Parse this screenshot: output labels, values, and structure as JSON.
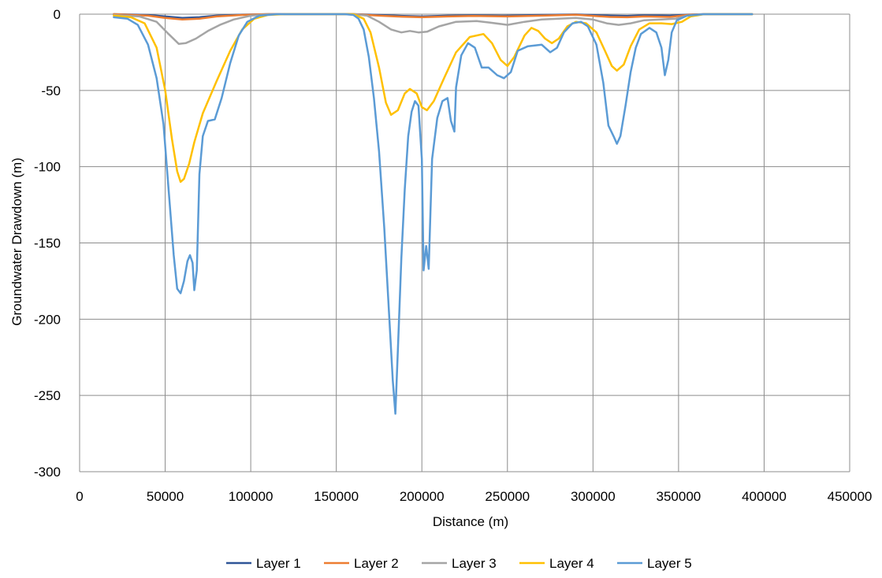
{
  "chart_data": {
    "type": "line",
    "title": "",
    "xlabel": "Distance (m)",
    "ylabel": "Groundwater Drawdown (m)",
    "xlim": [
      0,
      450000
    ],
    "ylim": [
      -300,
      0
    ],
    "x_ticks": [
      0,
      50000,
      100000,
      150000,
      200000,
      250000,
      300000,
      350000,
      400000,
      450000
    ],
    "y_ticks": [
      0,
      -50,
      -100,
      -150,
      -200,
      -250,
      -300
    ],
    "x_tick_labels": [
      "0",
      "50000",
      "100000",
      "150000",
      "200000",
      "250000",
      "300000",
      "350000",
      "400000",
      "450000"
    ],
    "y_tick_labels": [
      "0",
      "-50",
      "-100",
      "-150",
      "-200",
      "-250",
      "-300"
    ],
    "grid": true,
    "legend_position": "bottom",
    "series": [
      {
        "name": "Layer 1",
        "color": "#2f5597",
        "points": [
          [
            20000,
            0
          ],
          [
            40000,
            -0.5
          ],
          [
            50000,
            -1.5
          ],
          [
            60000,
            -2.5
          ],
          [
            70000,
            -2
          ],
          [
            80000,
            -1
          ],
          [
            95000,
            -0.3
          ],
          [
            110000,
            0
          ],
          [
            160000,
            0
          ],
          [
            175000,
            -0.5
          ],
          [
            185000,
            -1
          ],
          [
            200000,
            -1.5
          ],
          [
            215000,
            -1
          ],
          [
            230000,
            -0.8
          ],
          [
            250000,
            -1
          ],
          [
            270000,
            -0.5
          ],
          [
            290000,
            -0.2
          ],
          [
            310000,
            -1
          ],
          [
            320000,
            -1.2
          ],
          [
            330000,
            -0.8
          ],
          [
            345000,
            -1
          ],
          [
            355000,
            -0.3
          ],
          [
            365000,
            0
          ],
          [
            393000,
            0
          ]
        ]
      },
      {
        "name": "Layer 2",
        "color": "#ed7d31",
        "points": [
          [
            20000,
            0
          ],
          [
            40000,
            -1
          ],
          [
            50000,
            -2.5
          ],
          [
            60000,
            -3.5
          ],
          [
            70000,
            -3
          ],
          [
            80000,
            -1.5
          ],
          [
            95000,
            -0.5
          ],
          [
            110000,
            0
          ],
          [
            160000,
            0
          ],
          [
            175000,
            -1
          ],
          [
            185000,
            -1.5
          ],
          [
            200000,
            -2
          ],
          [
            215000,
            -1.5
          ],
          [
            230000,
            -1.2
          ],
          [
            250000,
            -1.5
          ],
          [
            270000,
            -1
          ],
          [
            290000,
            -0.4
          ],
          [
            310000,
            -1.8
          ],
          [
            320000,
            -2
          ],
          [
            330000,
            -1.5
          ],
          [
            345000,
            -1.8
          ],
          [
            355000,
            -0.5
          ],
          [
            365000,
            0
          ],
          [
            393000,
            0
          ]
        ]
      },
      {
        "name": "Layer 3",
        "color": "#a5a5a5",
        "points": [
          [
            20000,
            -0.5
          ],
          [
            35000,
            -1.5
          ],
          [
            45000,
            -5
          ],
          [
            52000,
            -13
          ],
          [
            58000,
            -19.5
          ],
          [
            62000,
            -19
          ],
          [
            68000,
            -16
          ],
          [
            75000,
            -11
          ],
          [
            82000,
            -7
          ],
          [
            90000,
            -3.5
          ],
          [
            100000,
            -1
          ],
          [
            110000,
            -0.2
          ],
          [
            120000,
            0
          ],
          [
            160000,
            0
          ],
          [
            168000,
            -1
          ],
          [
            175000,
            -5
          ],
          [
            182000,
            -10
          ],
          [
            188000,
            -12
          ],
          [
            193000,
            -11
          ],
          [
            198000,
            -12
          ],
          [
            203000,
            -11.5
          ],
          [
            210000,
            -8
          ],
          [
            220000,
            -5
          ],
          [
            232000,
            -4.5
          ],
          [
            240000,
            -5.5
          ],
          [
            250000,
            -7
          ],
          [
            260000,
            -5
          ],
          [
            270000,
            -3.5
          ],
          [
            280000,
            -3
          ],
          [
            290000,
            -2.5
          ],
          [
            300000,
            -3.5
          ],
          [
            308000,
            -6
          ],
          [
            315000,
            -7
          ],
          [
            322000,
            -6
          ],
          [
            330000,
            -4
          ],
          [
            340000,
            -3.5
          ],
          [
            348000,
            -3
          ],
          [
            355000,
            -1
          ],
          [
            365000,
            0
          ],
          [
            393000,
            0
          ]
        ]
      },
      {
        "name": "Layer 4",
        "color": "#ffc000",
        "points": [
          [
            20000,
            -1
          ],
          [
            30000,
            -2
          ],
          [
            38000,
            -6
          ],
          [
            45000,
            -22
          ],
          [
            50000,
            -50
          ],
          [
            54000,
            -82
          ],
          [
            57000,
            -103
          ],
          [
            59000,
            -110
          ],
          [
            61000,
            -108
          ],
          [
            64000,
            -98
          ],
          [
            67000,
            -84
          ],
          [
            72000,
            -65
          ],
          [
            80000,
            -44
          ],
          [
            88000,
            -24
          ],
          [
            95000,
            -10
          ],
          [
            102000,
            -3
          ],
          [
            110000,
            -0.5
          ],
          [
            120000,
            0
          ],
          [
            160000,
            0
          ],
          [
            166000,
            -3
          ],
          [
            170000,
            -12
          ],
          [
            175000,
            -35
          ],
          [
            179000,
            -58
          ],
          [
            182000,
            -66
          ],
          [
            186000,
            -63
          ],
          [
            190000,
            -52
          ],
          [
            193000,
            -49
          ],
          [
            197000,
            -52
          ],
          [
            200000,
            -61
          ],
          [
            203000,
            -63
          ],
          [
            207000,
            -57
          ],
          [
            213000,
            -42
          ],
          [
            220000,
            -25
          ],
          [
            228000,
            -15
          ],
          [
            236000,
            -13
          ],
          [
            241000,
            -19
          ],
          [
            246000,
            -30
          ],
          [
            250000,
            -34
          ],
          [
            254000,
            -28
          ],
          [
            260000,
            -14
          ],
          [
            264000,
            -9
          ],
          [
            268000,
            -11
          ],
          [
            272000,
            -16
          ],
          [
            276000,
            -19
          ],
          [
            280000,
            -16
          ],
          [
            285000,
            -8
          ],
          [
            290000,
            -5
          ],
          [
            296000,
            -6
          ],
          [
            302000,
            -12
          ],
          [
            307000,
            -24
          ],
          [
            311000,
            -34
          ],
          [
            314000,
            -37
          ],
          [
            318000,
            -33
          ],
          [
            322000,
            -21
          ],
          [
            327000,
            -10
          ],
          [
            333000,
            -6
          ],
          [
            340000,
            -6
          ],
          [
            346000,
            -6.5
          ],
          [
            352000,
            -5
          ],
          [
            357000,
            -1.5
          ],
          [
            365000,
            0
          ],
          [
            393000,
            0
          ]
        ]
      },
      {
        "name": "Layer 5",
        "color": "#5b9bd5",
        "points": [
          [
            20000,
            -2
          ],
          [
            28000,
            -3
          ],
          [
            34000,
            -7
          ],
          [
            40000,
            -20
          ],
          [
            45000,
            -42
          ],
          [
            49000,
            -72
          ],
          [
            52000,
            -115
          ],
          [
            55000,
            -158
          ],
          [
            57000,
            -180
          ],
          [
            59000,
            -183
          ],
          [
            61000,
            -175
          ],
          [
            63000,
            -162
          ],
          [
            64500,
            -158
          ],
          [
            66000,
            -163
          ],
          [
            67000,
            -181
          ],
          [
            68500,
            -168
          ],
          [
            70000,
            -105
          ],
          [
            72000,
            -80
          ],
          [
            75000,
            -70
          ],
          [
            79000,
            -69
          ],
          [
            83000,
            -55
          ],
          [
            88000,
            -32
          ],
          [
            93000,
            -14
          ],
          [
            98000,
            -5
          ],
          [
            105000,
            -1
          ],
          [
            115000,
            0
          ],
          [
            155000,
            0
          ],
          [
            160000,
            -0.5
          ],
          [
            163000,
            -3
          ],
          [
            166000,
            -10
          ],
          [
            169000,
            -28
          ],
          [
            172000,
            -55
          ],
          [
            175000,
            -90
          ],
          [
            178000,
            -140
          ],
          [
            181000,
            -200
          ],
          [
            183000,
            -240
          ],
          [
            184500,
            -262
          ],
          [
            186000,
            -220
          ],
          [
            188000,
            -160
          ],
          [
            190000,
            -115
          ],
          [
            192000,
            -80
          ],
          [
            194000,
            -64
          ],
          [
            196000,
            -57
          ],
          [
            198000,
            -60
          ],
          [
            200000,
            -95
          ],
          [
            201000,
            -168
          ],
          [
            202500,
            -152
          ],
          [
            204000,
            -167
          ],
          [
            206000,
            -95
          ],
          [
            209000,
            -68
          ],
          [
            212000,
            -57
          ],
          [
            215000,
            -55
          ],
          [
            217000,
            -70
          ],
          [
            219000,
            -77
          ],
          [
            220000,
            -48
          ],
          [
            223000,
            -27
          ],
          [
            227000,
            -19
          ],
          [
            231000,
            -22
          ],
          [
            235000,
            -35
          ],
          [
            239000,
            -35
          ],
          [
            244000,
            -40
          ],
          [
            248000,
            -42
          ],
          [
            252000,
            -38
          ],
          [
            256000,
            -24
          ],
          [
            262000,
            -21
          ],
          [
            270000,
            -20
          ],
          [
            275000,
            -25
          ],
          [
            279000,
            -22
          ],
          [
            283000,
            -12
          ],
          [
            288000,
            -6
          ],
          [
            293000,
            -5
          ],
          [
            297000,
            -8
          ],
          [
            302000,
            -20
          ],
          [
            306000,
            -45
          ],
          [
            309000,
            -73
          ],
          [
            312000,
            -80
          ],
          [
            314000,
            -85
          ],
          [
            316000,
            -80
          ],
          [
            319000,
            -60
          ],
          [
            322000,
            -38
          ],
          [
            325000,
            -22
          ],
          [
            328000,
            -13
          ],
          [
            333000,
            -9
          ],
          [
            337000,
            -12
          ],
          [
            340000,
            -22
          ],
          [
            342000,
            -40
          ],
          [
            344000,
            -30
          ],
          [
            346000,
            -12
          ],
          [
            349000,
            -4
          ],
          [
            355000,
            -1
          ],
          [
            365000,
            0
          ],
          [
            393000,
            0
          ]
        ]
      }
    ]
  }
}
